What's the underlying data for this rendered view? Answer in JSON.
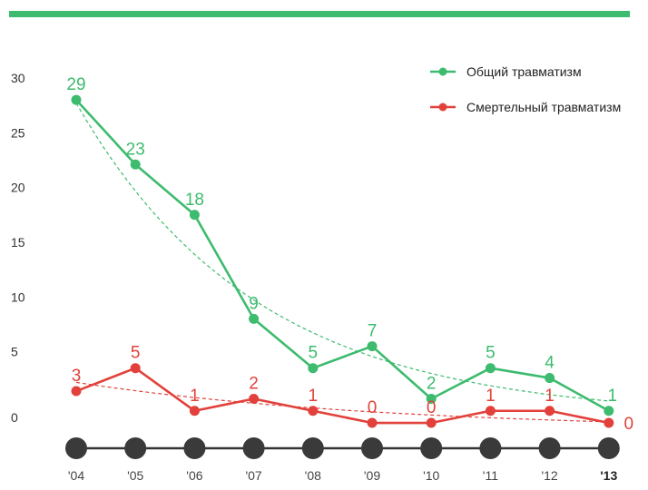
{
  "colors": {
    "top_bar": "#3dbb6e",
    "general": "#3dbb6e",
    "fatal": "#e2413b",
    "axis_line": "#333333",
    "year_dot": "#3a3a3a"
  },
  "chart_data": {
    "type": "line",
    "categories": [
      "'04",
      "'05",
      "'06",
      "'07",
      "'08",
      "'09",
      "'10",
      "'11",
      "'12",
      "'13"
    ],
    "bold_category": "'13",
    "yticks": [
      "0",
      "5",
      "10",
      "15",
      "20",
      "25",
      "30"
    ],
    "ylim": [
      0,
      30
    ],
    "grid": false,
    "legend_position": "top-right",
    "series": [
      {
        "name": "Общий травматизм",
        "color": "#3dbb6e",
        "values": [
          29,
          23,
          18,
          9,
          5,
          7,
          2,
          5,
          4,
          1
        ],
        "plotted": [
          29,
          23.1,
          18.5,
          9,
          4.5,
          6.5,
          1.7,
          4.5,
          3.6,
          0.6
        ],
        "trend": "exponential, dashed"
      },
      {
        "name": "Смертельный травматизм",
        "color": "#e2413b",
        "values": [
          3,
          5,
          1,
          2,
          1,
          0,
          0,
          1,
          1,
          0
        ],
        "plotted": [
          2.4,
          4.5,
          0.6,
          1.7,
          0.6,
          -0.5,
          -0.5,
          0.6,
          0.6,
          -0.5
        ],
        "trend": "exponential, dashed"
      }
    ]
  }
}
